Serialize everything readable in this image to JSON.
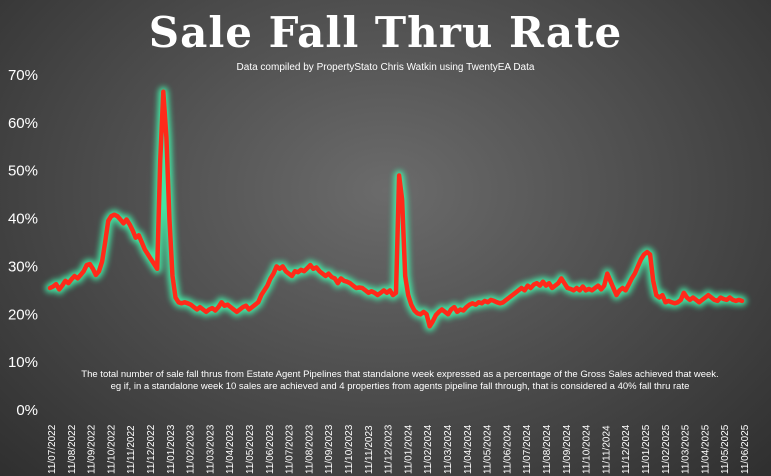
{
  "chart_data": {
    "type": "line",
    "title": "Sale Fall Thru Rate",
    "subtitle": "Data compiled by PropertyStato Chris Watkin using TwentyEA Data",
    "note_lines": [
      "The total number of sale fall thrus from Estate Agent Pipelines that standalone week expressed as a percentage of the Gross Sales achieved that week.",
      "eg if, in a standalone week 10 sales are achieved and 4 properties from agents pipeline fall through, that is considered a 40%  fall thru rate"
    ],
    "ylim": [
      0,
      70
    ],
    "yticks": [
      "0%",
      "10%",
      "20%",
      "30%",
      "40%",
      "50%",
      "60%",
      "70%"
    ],
    "xticks": [
      "11/07/2022",
      "11/08/2022",
      "11/09/2022",
      "11/10/2022",
      "11/11/2022",
      "11/12/2022",
      "11/01/2023",
      "11/02/2023",
      "11/03/2023",
      "11/04/2023",
      "11/05/2023",
      "11/06/2023",
      "11/07/2023",
      "11/08/2023",
      "11/09/2023",
      "11/10/2023",
      "11/11/2023",
      "11/12/2023",
      "11/01/2024",
      "11/02/2024",
      "11/03/2024",
      "11/04/2024",
      "11/05/2024",
      "11/06/2024",
      "11/07/2024",
      "11/08/2024",
      "11/09/2024",
      "11/10/2024",
      "11/11/2024",
      "11/12/2024",
      "11/01/2025",
      "11/02/2025",
      "11/03/2025",
      "11/04/2025",
      "11/05/2025",
      "11/06/2025"
    ],
    "line_color": "#ff2a1a",
    "glow_color": "#3fffb0",
    "series": [
      {
        "values": [
          25.5,
          25.8,
          26.3,
          25.2,
          26.0,
          27.0,
          26.5,
          27.3,
          28.0,
          27.5,
          28.2,
          29.0,
          30.3,
          30.5,
          29.5,
          28.2,
          29.0,
          31.0,
          35.0,
          39.5,
          40.5,
          40.8,
          40.5,
          39.8,
          39.0,
          39.8,
          38.8,
          37.5,
          36.0,
          36.5,
          35.0,
          33.5,
          32.5,
          31.5,
          30.5,
          29.5,
          52.0,
          66.5,
          57.0,
          40.0,
          28.0,
          23.5,
          22.5,
          22.3,
          22.5,
          22.3,
          22.0,
          21.5,
          21.0,
          21.5,
          21.0,
          20.5,
          21.0,
          21.3,
          20.8,
          21.5,
          22.5,
          21.8,
          22.0,
          21.5,
          21.0,
          20.5,
          21.0,
          21.5,
          21.8,
          21.0,
          21.5,
          22.0,
          22.5,
          24.0,
          25.0,
          26.0,
          27.5,
          28.5,
          30.0,
          29.5,
          30.0,
          29.0,
          28.5,
          28.0,
          29.0,
          28.8,
          29.3,
          29.0,
          29.6,
          30.3,
          29.5,
          29.8,
          29.0,
          28.5,
          28.0,
          28.5,
          27.8,
          27.5,
          26.5,
          27.5,
          27.0,
          26.8,
          26.5,
          26.0,
          25.5,
          25.6,
          25.5,
          25.0,
          24.5,
          24.8,
          24.5,
          24.0,
          24.5,
          25.0,
          24.5,
          25.0,
          24.0,
          24.5,
          49.0,
          44.0,
          28.0,
          24.0,
          22.0,
          20.8,
          20.2,
          20.0,
          20.5,
          20.0,
          17.5,
          18.5,
          19.8,
          20.5,
          21.0,
          20.5,
          20.0,
          21.0,
          21.5,
          20.5,
          21.0,
          20.8,
          21.5,
          22.0,
          22.3,
          22.0,
          22.5,
          22.3,
          22.8,
          22.5,
          23.0,
          22.8,
          22.5,
          22.3,
          22.5,
          23.0,
          23.5,
          24.0,
          24.5,
          25.0,
          25.5,
          25.0,
          26.0,
          25.5,
          26.2,
          26.5,
          26.0,
          26.8,
          26.0,
          26.5,
          25.5,
          26.0,
          26.5,
          27.5,
          26.5,
          25.5,
          25.3,
          25.0,
          25.5,
          25.0,
          25.8,
          25.0,
          25.3,
          25.0,
          25.5,
          26.0,
          25.2,
          26.0,
          28.5,
          27.0,
          25.5,
          24.0,
          25.0,
          25.5,
          25.0,
          26.2,
          27.5,
          28.5,
          30.0,
          31.5,
          32.5,
          33.0,
          32.5,
          27.0,
          24.0,
          23.5,
          24.0,
          22.5,
          22.8,
          22.5,
          22.3,
          22.5,
          23.0,
          24.5,
          23.5,
          23.0,
          23.5,
          23.0,
          22.5,
          23.0,
          23.5,
          24.0,
          23.5,
          23.0,
          22.8,
          23.5,
          23.2,
          23.0,
          23.5,
          23.0,
          22.8,
          23.0,
          22.8
        ]
      }
    ]
  }
}
